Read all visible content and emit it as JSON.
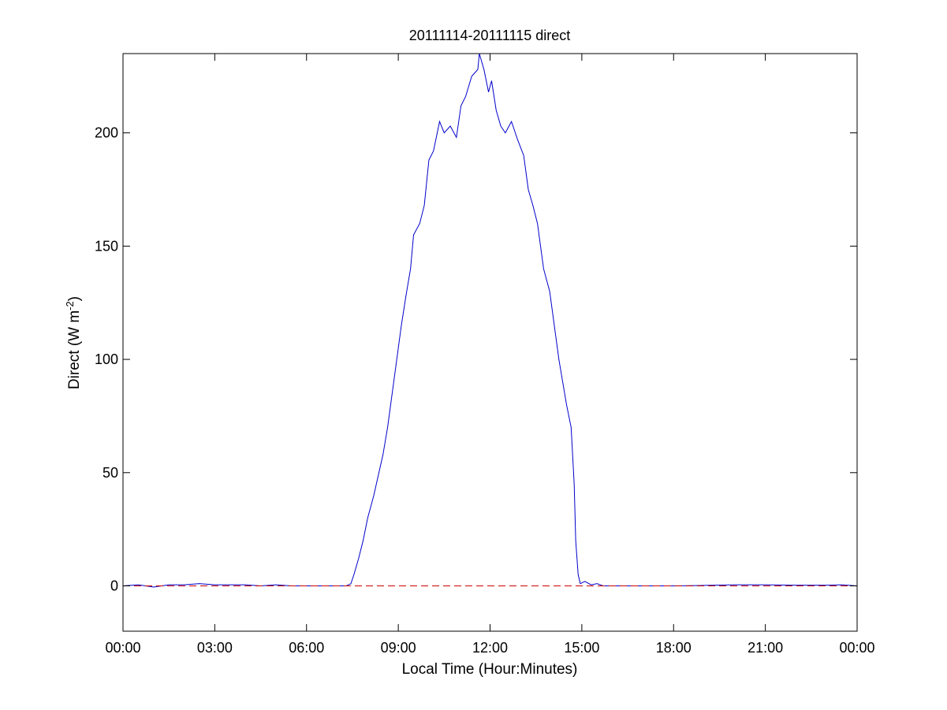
{
  "chart_data": {
    "type": "line",
    "title": "20111114-20111115 direct",
    "xlabel": "Local Time (Hour:Minutes)",
    "ylabel": "Direct (W m-2)",
    "ylabel_main": "Direct (W m",
    "ylabel_sup": "-2",
    "ylabel_close": ")",
    "xlim": [
      0,
      24
    ],
    "ylim": [
      -20,
      235
    ],
    "x_unit": "hours",
    "xticks": [
      {
        "value": 0,
        "label": "00:00"
      },
      {
        "value": 3,
        "label": "03:00"
      },
      {
        "value": 6,
        "label": "06:00"
      },
      {
        "value": 9,
        "label": "09:00"
      },
      {
        "value": 12,
        "label": "12:00"
      },
      {
        "value": 15,
        "label": "15:00"
      },
      {
        "value": 18,
        "label": "18:00"
      },
      {
        "value": 21,
        "label": "21:00"
      },
      {
        "value": 24,
        "label": "00:00"
      }
    ],
    "yticks": [
      {
        "value": 0,
        "label": "0"
      },
      {
        "value": 50,
        "label": "50"
      },
      {
        "value": 100,
        "label": "100"
      },
      {
        "value": 150,
        "label": "150"
      },
      {
        "value": 200,
        "label": "200"
      }
    ],
    "grid": false,
    "series": [
      {
        "color": "#0000cc",
        "style": "solid",
        "x": [
          0,
          0.5,
          1,
          1.5,
          2,
          2.5,
          3,
          3.5,
          4,
          4.5,
          5,
          5.5,
          6,
          6.5,
          7,
          7.3,
          7.45,
          7.55,
          7.7,
          7.85,
          8.0,
          8.2,
          8.4,
          8.5,
          8.65,
          8.8,
          8.95,
          9.1,
          9.25,
          9.4,
          9.5,
          9.7,
          9.85,
          10.0,
          10.15,
          10.35,
          10.5,
          10.7,
          10.9,
          11.05,
          11.2,
          11.4,
          11.6,
          11.65,
          11.8,
          11.95,
          12.05,
          12.2,
          12.35,
          12.5,
          12.7,
          12.9,
          13.1,
          13.25,
          13.4,
          13.55,
          13.75,
          13.95,
          14.1,
          14.25,
          14.4,
          14.5,
          14.65,
          14.75,
          14.8,
          14.88,
          14.95,
          15.1,
          15.3,
          15.5,
          15.7,
          16,
          17,
          18,
          19,
          20,
          21,
          22,
          23,
          23.5,
          24
        ],
        "y": [
          0,
          0.5,
          -0.5,
          0.5,
          0.5,
          1,
          0.5,
          0.5,
          0.5,
          0,
          0.5,
          0,
          0,
          0,
          0,
          0,
          1,
          5,
          12,
          20,
          30,
          40,
          52,
          58,
          70,
          85,
          100,
          115,
          128,
          140,
          155,
          160,
          168,
          188,
          192,
          205,
          200,
          203,
          198,
          212,
          216,
          225,
          228,
          235,
          228,
          218,
          223,
          210,
          203,
          200,
          205,
          197,
          190,
          175,
          168,
          160,
          140,
          130,
          115,
          100,
          88,
          80,
          70,
          45,
          20,
          5,
          1,
          2,
          0.5,
          1,
          0,
          0,
          0,
          0,
          0.2,
          0.5,
          0.5,
          0.3,
          0.3,
          0.5,
          0
        ]
      },
      {
        "color": "#cc0000",
        "style": "dashed",
        "x": [
          0,
          24
        ],
        "y": [
          0,
          0
        ]
      }
    ]
  }
}
